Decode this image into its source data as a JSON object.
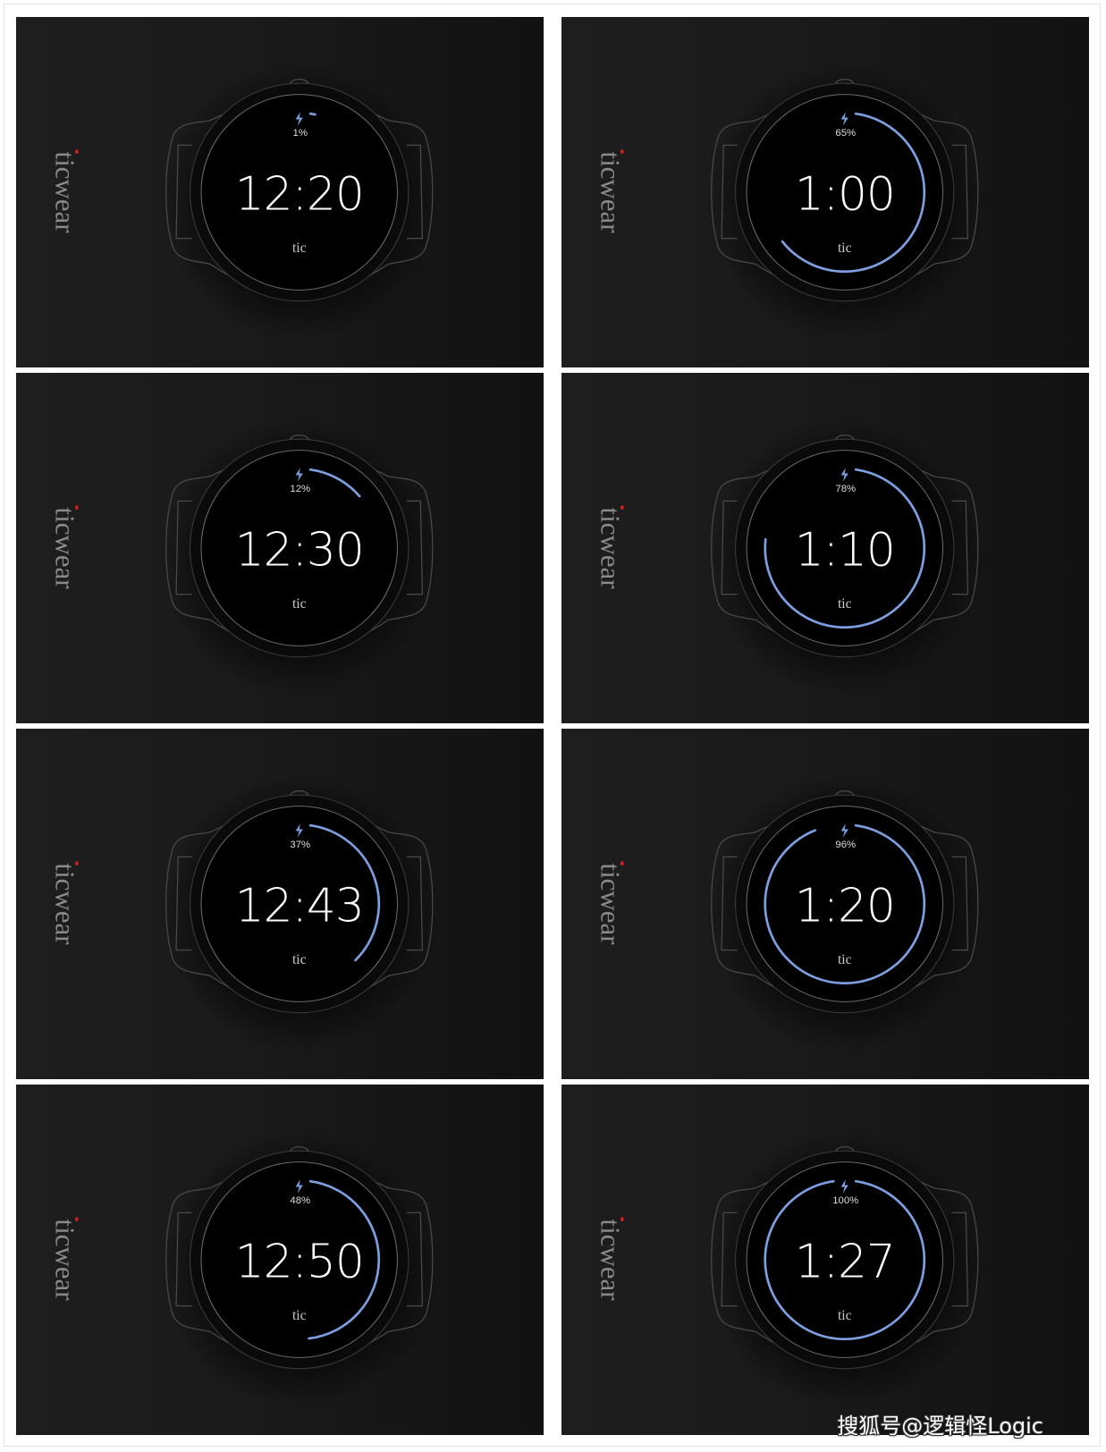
{
  "brand": "ticwear",
  "watch_label": "tic",
  "accent_color": "#7d9fe0",
  "brand_dot_color": "#e02020",
  "icons": {
    "charging": "lightning-bolt-icon"
  },
  "panels": [
    {
      "time": "12:20",
      "battery": "1%",
      "progress": 1
    },
    {
      "time": "1:00",
      "battery": "65%",
      "progress": 65
    },
    {
      "time": "12:30",
      "battery": "12%",
      "progress": 12
    },
    {
      "time": "1:10",
      "battery": "78%",
      "progress": 78
    },
    {
      "time": "12:43",
      "battery": "37%",
      "progress": 37
    },
    {
      "time": "1:20",
      "battery": "96%",
      "progress": 96
    },
    {
      "time": "12:50",
      "battery": "48%",
      "progress": 48
    },
    {
      "time": "1:27",
      "battery": "100%",
      "progress": 100
    }
  ],
  "watermark": "搜狐号@逻辑怪Logic"
}
